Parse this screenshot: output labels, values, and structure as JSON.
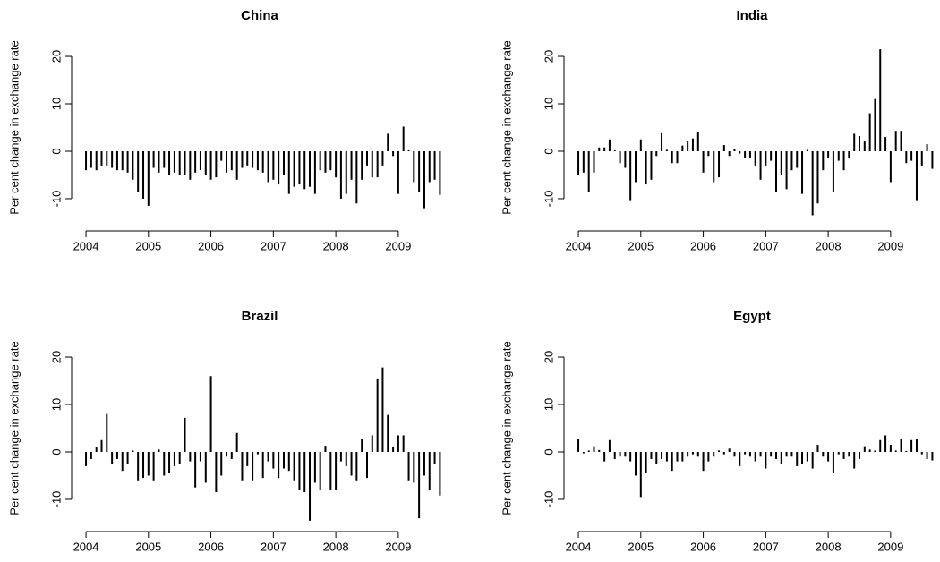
{
  "chart_data": [
    {
      "type": "spike",
      "title": "China",
      "ylabel": "Per cent change in exchange rate",
      "x": [
        2004,
        2004.083,
        2004.167,
        2004.25,
        2004.333,
        2004.417,
        2004.5,
        2004.583,
        2004.667,
        2004.75,
        2004.833,
        2004.917,
        2005,
        2005.083,
        2005.167,
        2005.25,
        2005.333,
        2005.417,
        2005.5,
        2005.583,
        2005.667,
        2005.75,
        2005.833,
        2005.917,
        2006,
        2006.083,
        2006.167,
        2006.25,
        2006.333,
        2006.417,
        2006.5,
        2006.583,
        2006.667,
        2006.75,
        2006.833,
        2006.917,
        2007,
        2007.083,
        2007.167,
        2007.25,
        2007.333,
        2007.417,
        2007.5,
        2007.583,
        2007.667,
        2007.75,
        2007.833,
        2007.917,
        2008,
        2008.083,
        2008.167,
        2008.25,
        2008.333,
        2008.417,
        2008.5,
        2008.583,
        2008.667,
        2008.75,
        2008.833,
        2008.917,
        2009,
        2009.083,
        2009.167,
        2009.25,
        2009.333,
        2009.417,
        2009.5,
        2009.583,
        2009.667
      ],
      "values": [
        -4,
        -3.5,
        -4,
        -3,
        -3,
        -3.5,
        -4,
        -4,
        -4.5,
        -6,
        -8.5,
        -10,
        -11.5,
        -3.5,
        -4.5,
        -3.5,
        -5,
        -4.5,
        -5,
        -5,
        -6,
        -4.5,
        -4,
        -5,
        -6,
        -5.5,
        -2,
        -4.5,
        -4,
        -6,
        -3.5,
        -3,
        -3.5,
        -4,
        -4.5,
        -6.5,
        -6,
        -7,
        -5,
        -9,
        -7.5,
        -7,
        -8,
        -7.5,
        -9,
        -4,
        -4.5,
        -4,
        -5.5,
        -10,
        -9,
        -6,
        -11,
        -6,
        -3,
        -5.5,
        -5.5,
        -3,
        3.7,
        -1,
        -9,
        5.2,
        0.2,
        -6.5,
        -8.5,
        -12,
        -6.5,
        -6,
        -9.2
      ],
      "color": "#000000",
      "xlim": [
        2003.77,
        2009.79
      ],
      "ylim": [
        -16.8,
        26.8
      ],
      "xticks": [
        2004,
        2005,
        2006,
        2007,
        2008,
        2009
      ],
      "yticks": [
        -10,
        0,
        10,
        20
      ]
    },
    {
      "type": "spike",
      "title": "India",
      "ylabel": "Per cent change in exchange rate",
      "x": [
        2004,
        2004.083,
        2004.167,
        2004.25,
        2004.333,
        2004.417,
        2004.5,
        2004.583,
        2004.667,
        2004.75,
        2004.833,
        2004.917,
        2005,
        2005.083,
        2005.167,
        2005.25,
        2005.333,
        2005.417,
        2005.5,
        2005.583,
        2005.667,
        2005.75,
        2005.833,
        2005.917,
        2006,
        2006.083,
        2006.167,
        2006.25,
        2006.333,
        2006.417,
        2006.5,
        2006.583,
        2006.667,
        2006.75,
        2006.833,
        2006.917,
        2007,
        2007.083,
        2007.167,
        2007.25,
        2007.333,
        2007.417,
        2007.5,
        2007.583,
        2007.667,
        2007.75,
        2007.833,
        2007.917,
        2008,
        2008.083,
        2008.167,
        2008.25,
        2008.333,
        2008.417,
        2008.5,
        2008.583,
        2008.667,
        2008.75,
        2008.833,
        2008.917,
        2009,
        2009.083,
        2009.167,
        2009.25,
        2009.333,
        2009.417,
        2009.5,
        2009.583,
        2009.667
      ],
      "values": [
        -5,
        -4.5,
        -8.5,
        -4.5,
        0.8,
        0.8,
        2.5,
        0.2,
        -2.5,
        -3.5,
        -10.5,
        -6.5,
        2.5,
        -7,
        -6,
        -1,
        3.8,
        0.3,
        -2.5,
        -2.5,
        1.2,
        2.2,
        2.7,
        4,
        -4.5,
        -1,
        -6.5,
        -5.5,
        1.3,
        -1,
        0.5,
        -0.5,
        -1.5,
        -1.5,
        -3,
        -6,
        -3,
        -2,
        -8.5,
        -5,
        -8,
        -4,
        -3.5,
        -9,
        0.3,
        -13.5,
        -11,
        -4,
        -1.5,
        -8.5,
        -2,
        -4,
        -1.5,
        3.7,
        3.2,
        2.2,
        8,
        11,
        21.5,
        3,
        -6.5,
        4.3,
        4.3,
        -2.5,
        -2,
        -10.5,
        -3,
        1.5,
        -3.7
      ],
      "color": "#000000",
      "xlim": [
        2003.77,
        2009.79
      ],
      "ylim": [
        -16.8,
        26.8
      ],
      "xticks": [
        2004,
        2005,
        2006,
        2007,
        2008,
        2009
      ],
      "yticks": [
        -10,
        0,
        10,
        20
      ]
    },
    {
      "type": "spike",
      "title": "Brazil",
      "ylabel": "Per cent change in exchange rate",
      "x": [
        2004,
        2004.083,
        2004.167,
        2004.25,
        2004.333,
        2004.417,
        2004.5,
        2004.583,
        2004.667,
        2004.75,
        2004.833,
        2004.917,
        2005,
        2005.083,
        2005.167,
        2005.25,
        2005.333,
        2005.417,
        2005.5,
        2005.583,
        2005.667,
        2005.75,
        2005.833,
        2005.917,
        2006,
        2006.083,
        2006.167,
        2006.25,
        2006.333,
        2006.417,
        2006.5,
        2006.583,
        2006.667,
        2006.75,
        2006.833,
        2006.917,
        2007,
        2007.083,
        2007.167,
        2007.25,
        2007.333,
        2007.417,
        2007.5,
        2007.583,
        2007.667,
        2007.75,
        2007.833,
        2007.917,
        2008,
        2008.083,
        2008.167,
        2008.25,
        2008.333,
        2008.417,
        2008.5,
        2008.583,
        2008.667,
        2008.75,
        2008.833,
        2008.917,
        2009,
        2009.083,
        2009.167,
        2009.25,
        2009.333,
        2009.417,
        2009.5,
        2009.583,
        2009.667
      ],
      "values": [
        -3,
        -1.5,
        1,
        2.5,
        8,
        -2.5,
        -1.5,
        -4,
        -2.5,
        0.3,
        -6,
        -5.5,
        -5,
        -6,
        0.5,
        -5,
        -4.5,
        -3,
        -2.5,
        7.2,
        -2,
        -7.5,
        -2,
        -6.5,
        16,
        -8.5,
        -5,
        -1,
        -1.5,
        4,
        -6,
        -3,
        -6,
        -0.5,
        -5.5,
        -2,
        -3.5,
        -5.5,
        -3.5,
        -4,
        -6,
        -8,
        -8.5,
        -14.5,
        -6.5,
        -8,
        1.3,
        -8,
        -8,
        -2,
        -3,
        -5,
        -6,
        2.8,
        -5.5,
        3.5,
        15.5,
        17.8,
        7.8,
        1,
        3.5,
        3.5,
        -6,
        -6.5,
        -14,
        -5,
        -8,
        -2.5,
        -9.2
      ],
      "color": "#000000",
      "xlim": [
        2003.77,
        2009.79
      ],
      "ylim": [
        -16.8,
        26.8
      ],
      "xticks": [
        2004,
        2005,
        2006,
        2007,
        2008,
        2009
      ],
      "yticks": [
        -10,
        0,
        10,
        20
      ]
    },
    {
      "type": "spike",
      "title": "Egypt",
      "ylabel": "Per cent change in exchange rate",
      "x": [
        2004,
        2004.083,
        2004.167,
        2004.25,
        2004.333,
        2004.417,
        2004.5,
        2004.583,
        2004.667,
        2004.75,
        2004.833,
        2004.917,
        2005,
        2005.083,
        2005.167,
        2005.25,
        2005.333,
        2005.417,
        2005.5,
        2005.583,
        2005.667,
        2005.75,
        2005.833,
        2005.917,
        2006,
        2006.083,
        2006.167,
        2006.25,
        2006.333,
        2006.417,
        2006.5,
        2006.583,
        2006.667,
        2006.75,
        2006.833,
        2006.917,
        2007,
        2007.083,
        2007.167,
        2007.25,
        2007.333,
        2007.417,
        2007.5,
        2007.583,
        2007.667,
        2007.75,
        2007.833,
        2007.917,
        2008,
        2008.083,
        2008.167,
        2008.25,
        2008.333,
        2008.417,
        2008.5,
        2008.583,
        2008.667,
        2008.75,
        2008.833,
        2008.917,
        2009,
        2009.083,
        2009.167,
        2009.25,
        2009.333,
        2009.417,
        2009.5,
        2009.583,
        2009.667
      ],
      "values": [
        2.8,
        -0.3,
        0.3,
        1.2,
        0.4,
        -2,
        2.5,
        -1.5,
        -1,
        -1,
        -2,
        -5,
        -9.5,
        -4.5,
        -1.5,
        -2.5,
        -1.5,
        -2,
        -4,
        -2,
        -2,
        -1,
        -0.5,
        -1,
        -4,
        -2,
        -1,
        0.3,
        -0.5,
        0.7,
        -1,
        -3,
        -0.5,
        -1,
        -2,
        -1,
        -3.5,
        -1,
        -1.5,
        -2.5,
        -1,
        -1,
        -3,
        -2.5,
        -2,
        -3.5,
        1.5,
        -1,
        -2,
        -4.5,
        -0.5,
        -1.5,
        -1,
        -3.5,
        -1.5,
        1.2,
        0.5,
        0.3,
        2.5,
        3.5,
        1.5,
        0.3,
        2.8,
        0.2,
        2.5,
        2.8,
        -0.5,
        -1.5,
        -1.8
      ],
      "color": "#000000",
      "xlim": [
        2003.77,
        2009.79
      ],
      "ylim": [
        -16.8,
        26.8
      ],
      "xticks": [
        2004,
        2005,
        2006,
        2007,
        2008,
        2009
      ],
      "yticks": [
        -10,
        0,
        10,
        20
      ]
    }
  ]
}
